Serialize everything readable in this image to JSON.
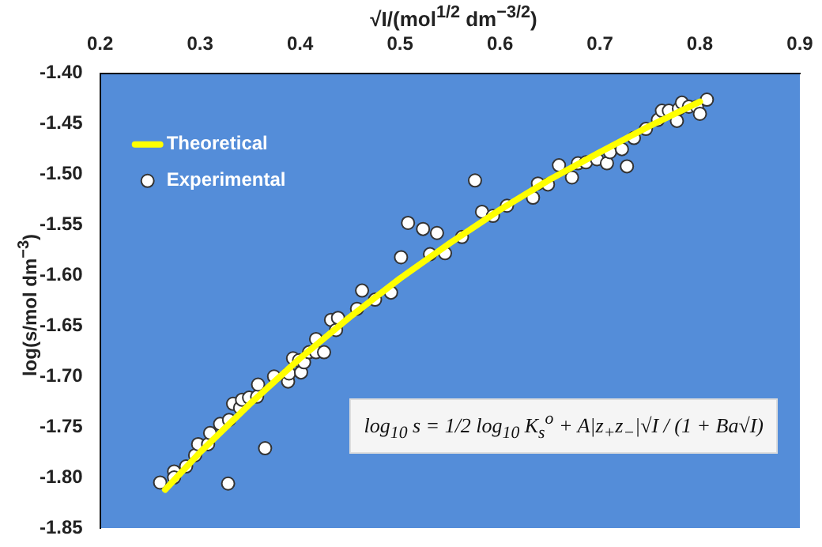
{
  "chart_data": {
    "type": "scatter",
    "xlabel": "√I/(mol$^{1/2}$ dm$^{−3/2}$)",
    "ylabel": "log(s/mol dm$^{−3}$)",
    "xlim": [
      0.2,
      0.9
    ],
    "xticks": [
      0.2,
      0.3,
      0.4,
      0.5,
      0.6,
      0.7,
      0.8,
      0.9
    ],
    "ylim": [
      -1.85,
      -1.4
    ],
    "yticks": [
      {
        "value": -1.85,
        "label": "-1.85"
      },
      {
        "value": -1.8,
        "label": "-1.80"
      },
      {
        "value": -1.75,
        "label": "-1.75"
      },
      {
        "value": -1.7,
        "label": "-1.70"
      },
      {
        "value": -1.65,
        "label": "-1.65"
      },
      {
        "value": -1.6,
        "label": "-1.60"
      },
      {
        "value": -1.55,
        "label": "-1.55"
      },
      {
        "value": -1.5,
        "label": "-1.50"
      },
      {
        "value": -1.45,
        "label": "-1.45"
      },
      {
        "value": -1.4,
        "label": "-1.40"
      }
    ],
    "grid": false,
    "legend": "top left",
    "series": [
      {
        "name": "Theoretical",
        "type": "line",
        "color": "#ffff00",
        "x": [
          0.265,
          0.3,
          0.35,
          0.4,
          0.45,
          0.5,
          0.55,
          0.6,
          0.65,
          0.7,
          0.75,
          0.8
        ],
        "values": [
          -1.812,
          -1.775,
          -1.727,
          -1.682,
          -1.641,
          -1.603,
          -1.568,
          -1.535,
          -1.505,
          -1.478,
          -1.452,
          -1.428
        ]
      },
      {
        "name": "Experimental",
        "marker": "circle",
        "color": "#ffffff",
        "x": [
          0.26,
          0.274,
          0.274,
          0.286,
          0.295,
          0.298,
          0.308,
          0.31,
          0.32,
          0.329,
          0.328,
          0.333,
          0.34,
          0.342,
          0.349,
          0.357,
          0.358,
          0.365,
          0.374,
          0.388,
          0.389,
          0.393,
          0.399,
          0.401,
          0.404,
          0.409,
          0.416,
          0.416,
          0.424,
          0.431,
          0.436,
          0.438,
          0.457,
          0.462,
          0.475,
          0.491,
          0.501,
          0.508,
          0.523,
          0.53,
          0.537,
          0.545,
          0.562,
          0.575,
          0.582,
          0.593,
          0.607,
          0.633,
          0.638,
          0.648,
          0.659,
          0.672,
          0.678,
          0.686,
          0.697,
          0.707,
          0.71,
          0.722,
          0.727,
          0.734,
          0.746,
          0.758,
          0.762,
          0.769,
          0.777,
          0.779,
          0.782,
          0.789,
          0.797,
          0.8,
          0.807
        ],
        "values": [
          -1.805,
          -1.794,
          -1.8,
          -1.789,
          -1.778,
          -1.767,
          -1.767,
          -1.756,
          -1.747,
          -1.743,
          -1.806,
          -1.727,
          -1.731,
          -1.723,
          -1.721,
          -1.72,
          -1.708,
          -1.771,
          -1.7,
          -1.705,
          -1.697,
          -1.682,
          -1.684,
          -1.696,
          -1.686,
          -1.676,
          -1.663,
          -1.676,
          -1.676,
          -1.644,
          -1.654,
          -1.642,
          -1.633,
          -1.615,
          -1.624,
          -1.617,
          -1.582,
          -1.548,
          -1.554,
          -1.579,
          -1.558,
          -1.578,
          -1.562,
          -1.506,
          -1.537,
          -1.541,
          -1.531,
          -1.523,
          -1.509,
          -1.51,
          -1.491,
          -1.503,
          -1.489,
          -1.488,
          -1.485,
          -1.489,
          -1.478,
          -1.475,
          -1.492,
          -1.464,
          -1.455,
          -1.446,
          -1.437,
          -1.437,
          -1.447,
          -1.435,
          -1.429,
          -1.433,
          -1.433,
          -1.44,
          -1.426
        ]
      }
    ],
    "annotations": [
      "log$_{10}$ s = 1/2 log$_{10}$ K$_{s}$$^{o}$ + A|z$_{+}$z$_{−}$|√I / (1 + Ba√I)"
    ]
  }
}
